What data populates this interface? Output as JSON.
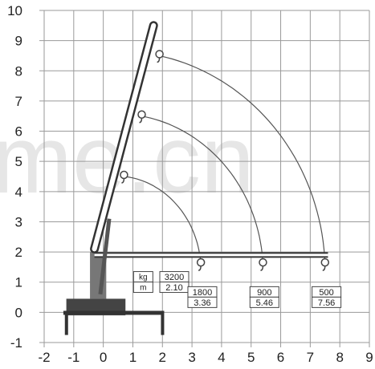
{
  "chart_data": {
    "type": "scatter",
    "title": "",
    "xlabel": "",
    "ylabel": "",
    "xlim": [
      -2,
      9
    ],
    "ylim": [
      -1,
      10
    ],
    "grid": true,
    "x_ticks": [
      "-2",
      "-1",
      "0",
      "1",
      "2",
      "3",
      "4",
      "5",
      "6",
      "7",
      "8",
      "9"
    ],
    "y_ticks": [
      "-1",
      "0",
      "1",
      "2",
      "3",
      "4",
      "5",
      "6",
      "7",
      "8",
      "9",
      "10"
    ],
    "boom_angled": {
      "from": [
        -0.3,
        2.1
      ],
      "to": [
        1.7,
        9.5
      ]
    },
    "boom_horizontal": {
      "from": [
        -0.3,
        1.9
      ],
      "to": [
        7.6,
        1.9
      ]
    },
    "arcs": [
      {
        "start": [
          1.9,
          8.5
        ],
        "end": [
          7.5,
          1.6
        ]
      },
      {
        "start": [
          1.3,
          6.5
        ],
        "end": [
          5.4,
          1.6
        ]
      },
      {
        "start": [
          0.7,
          4.5
        ],
        "end": [
          3.3,
          1.6
        ]
      }
    ],
    "hook_points": [
      {
        "x": 1.9,
        "y": 8.5
      },
      {
        "x": 1.3,
        "y": 6.5
      },
      {
        "x": 0.7,
        "y": 4.5
      },
      {
        "x": 3.3,
        "y": 1.6
      },
      {
        "x": 5.4,
        "y": 1.6
      },
      {
        "x": 7.5,
        "y": 1.6
      }
    ]
  },
  "units": {
    "kg": "kg",
    "m": "m"
  },
  "load_boxes": [
    {
      "kg": "3200",
      "m": "2.10"
    },
    {
      "kg": "1800",
      "m": "3.36"
    },
    {
      "kg": "900",
      "m": "5.46"
    },
    {
      "kg": "500",
      "m": "7.56"
    }
  ],
  "watermark": "me.cn"
}
